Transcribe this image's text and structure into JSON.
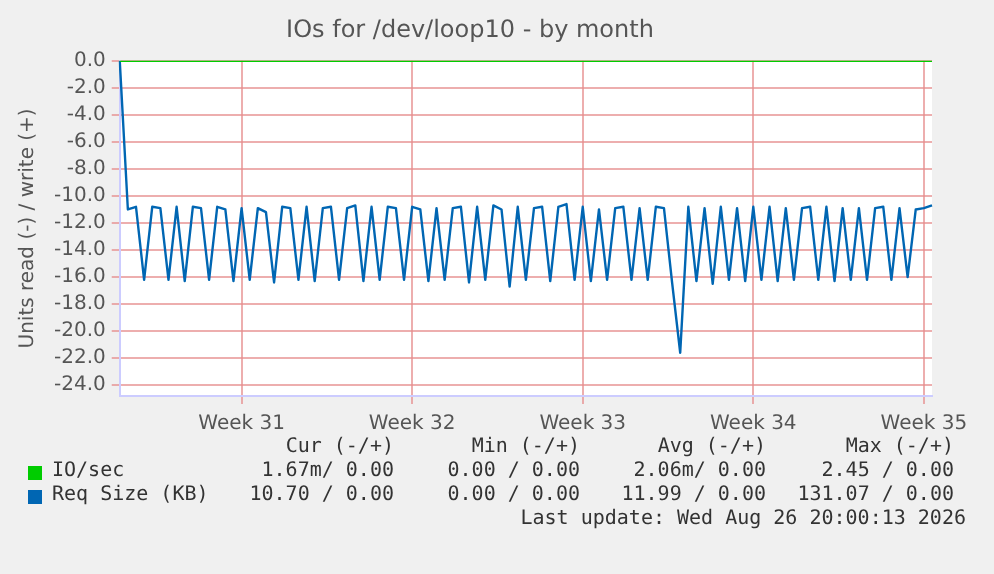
{
  "chart_data": {
    "type": "line",
    "title": "IOs for /dev/loop10 - by month",
    "ylabel": "Units read (-) / write (+)",
    "categories": [
      null,
      null,
      null,
      null,
      null,
      null,
      null,
      null,
      null,
      null,
      null,
      null,
      null,
      null,
      null,
      "Week 31",
      null,
      null,
      null,
      null,
      null,
      null,
      null,
      null,
      null,
      null,
      null,
      null,
      null,
      null,
      null,
      null,
      null,
      null,
      null,
      null,
      "Week 32",
      null,
      null,
      null,
      null,
      null,
      null,
      null,
      null,
      null,
      null,
      null,
      null,
      null,
      null,
      null,
      null,
      null,
      null,
      null,
      null,
      "Week 33",
      null,
      null,
      null,
      null,
      null,
      null,
      null,
      null,
      null,
      null,
      null,
      null,
      null,
      null,
      null,
      null,
      null,
      null,
      null,
      null,
      "Week 34",
      null,
      null,
      null,
      null,
      null,
      null,
      null,
      null,
      null,
      null,
      null,
      null,
      null,
      null,
      null,
      null,
      null,
      null,
      null,
      null,
      "Week 35",
      null
    ],
    "ylim": [
      -24.8,
      0
    ],
    "yticks": [
      {
        "value": 0,
        "label": "0.0"
      },
      {
        "value": -2,
        "label": "-2.0"
      },
      {
        "value": -4,
        "label": "-4.0"
      },
      {
        "value": -6,
        "label": "-6.0"
      },
      {
        "value": -8,
        "label": "-8.0"
      },
      {
        "value": -10,
        "label": "-10.0"
      },
      {
        "value": -12,
        "label": "-12.0"
      },
      {
        "value": -14,
        "label": "-14.0"
      },
      {
        "value": -16,
        "label": "-16.0"
      },
      {
        "value": -18,
        "label": "-18.0"
      },
      {
        "value": -20,
        "label": "-20.0"
      },
      {
        "value": -22,
        "label": "-22.0"
      },
      {
        "value": -24,
        "label": "-24.0"
      }
    ],
    "grid": true,
    "legend": "bottom",
    "marker": "none",
    "line_style": "solid",
    "series": [
      {
        "name": "IO/sec",
        "color": "#00cc00",
        "values": [
          0,
          0,
          0,
          0,
          0,
          0,
          0,
          0,
          0,
          0,
          0,
          0,
          0,
          0,
          0,
          0,
          0,
          0,
          0,
          0,
          0,
          0,
          0,
          0,
          0,
          0,
          0,
          0,
          0,
          0,
          0,
          0,
          0,
          0,
          0,
          0,
          0,
          0,
          0,
          0,
          0,
          0,
          0,
          0,
          0,
          0,
          0,
          0,
          0,
          0,
          0,
          0,
          0,
          0,
          0,
          0,
          0,
          0,
          0,
          0,
          0,
          0,
          0,
          0,
          0,
          0,
          0,
          0,
          0,
          0,
          0,
          0,
          0,
          0,
          0,
          0,
          0,
          0,
          0,
          0,
          0,
          0,
          0,
          0,
          0,
          0,
          0,
          0,
          0,
          0,
          0,
          0,
          0,
          0,
          0,
          0,
          0,
          0,
          0,
          0,
          0
        ]
      },
      {
        "name": "Req Size (KB)",
        "color": "#0066b3",
        "values": [
          0,
          -11.0,
          -10.8,
          -16.2,
          -10.8,
          -10.9,
          -16.2,
          -10.8,
          -16.3,
          -10.8,
          -10.9,
          -16.2,
          -10.8,
          -11.0,
          -16.3,
          -10.9,
          -16.2,
          -10.9,
          -11.2,
          -16.4,
          -10.8,
          -10.9,
          -16.2,
          -10.8,
          -16.3,
          -10.9,
          -10.8,
          -16.2,
          -10.9,
          -10.7,
          -16.3,
          -10.8,
          -16.2,
          -10.8,
          -10.9,
          -16.2,
          -10.8,
          -11.0,
          -16.3,
          -10.9,
          -16.2,
          -10.9,
          -10.8,
          -16.4,
          -10.8,
          -16.2,
          -10.7,
          -11.0,
          -16.7,
          -10.8,
          -16.2,
          -10.9,
          -10.8,
          -16.3,
          -10.8,
          -10.6,
          -16.2,
          -10.8,
          -16.3,
          -11.0,
          -16.2,
          -10.9,
          -10.8,
          -16.2,
          -10.9,
          -16.2,
          -10.8,
          -10.9,
          -16.4,
          -21.6,
          -10.8,
          -16.3,
          -10.9,
          -16.5,
          -10.8,
          -16.2,
          -10.9,
          -16.3,
          -10.8,
          -16.2,
          -10.8,
          -16.3,
          -10.9,
          -16.2,
          -10.9,
          -10.8,
          -16.2,
          -10.8,
          -16.3,
          -10.9,
          -16.2,
          -10.9,
          -16.2,
          -10.9,
          -10.8,
          -16.2,
          -10.9,
          -16.0,
          -11.0,
          -10.9,
          -10.7
        ]
      }
    ],
    "annotations": [
      "Cur (-/+)",
      "Min (-/+)",
      "Avg (-/+)",
      "Max (-/+)",
      "1.67m/ 0.00",
      "0.00 / 0.00",
      "2.06m/ 0.00",
      "2.45 / 0.00",
      "10.70 / 0.00",
      "0.00 / 0.00",
      "11.99 / 0.00",
      "131.07 / 0.00",
      "Last update: Wed Aug 26 20:00:13 2026"
    ]
  }
}
